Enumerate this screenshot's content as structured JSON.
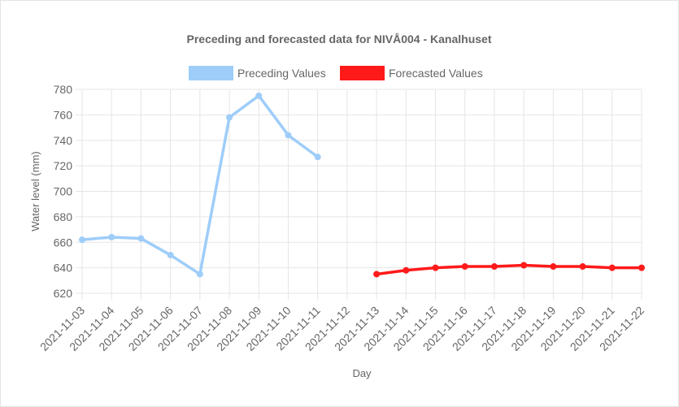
{
  "chart_data": {
    "type": "line",
    "title": "Preceding and forecasted data for NIVÅ004 - Kanalhuset",
    "xlabel": "Day",
    "ylabel": "Water level (mm)",
    "categories": [
      "2021-11-03",
      "2021-11-04",
      "2021-11-05",
      "2021-11-06",
      "2021-11-07",
      "2021-11-08",
      "2021-11-09",
      "2021-11-10",
      "2021-11-11",
      "2021-11-12",
      "2021-11-13",
      "2021-11-14",
      "2021-11-15",
      "2021-11-16",
      "2021-11-17",
      "2021-11-18",
      "2021-11-19",
      "2021-11-20",
      "2021-11-21",
      "2021-11-22"
    ],
    "ylim": [
      620,
      780
    ],
    "yticks": [
      620,
      640,
      660,
      680,
      700,
      720,
      740,
      760,
      780
    ],
    "grid": true,
    "legend_position": "top",
    "series": [
      {
        "name": "Preceding Values",
        "color": "#9ecdf9",
        "values": [
          662,
          664,
          663,
          650,
          635,
          758,
          775,
          744,
          727,
          null,
          null,
          null,
          null,
          null,
          null,
          null,
          null,
          null,
          null,
          null
        ]
      },
      {
        "name": "Forecasted Values",
        "color": "#ff1a1a",
        "values": [
          null,
          null,
          null,
          null,
          null,
          null,
          null,
          null,
          null,
          null,
          635,
          638,
          640,
          641,
          641,
          642,
          641,
          641,
          640,
          640
        ]
      }
    ]
  }
}
